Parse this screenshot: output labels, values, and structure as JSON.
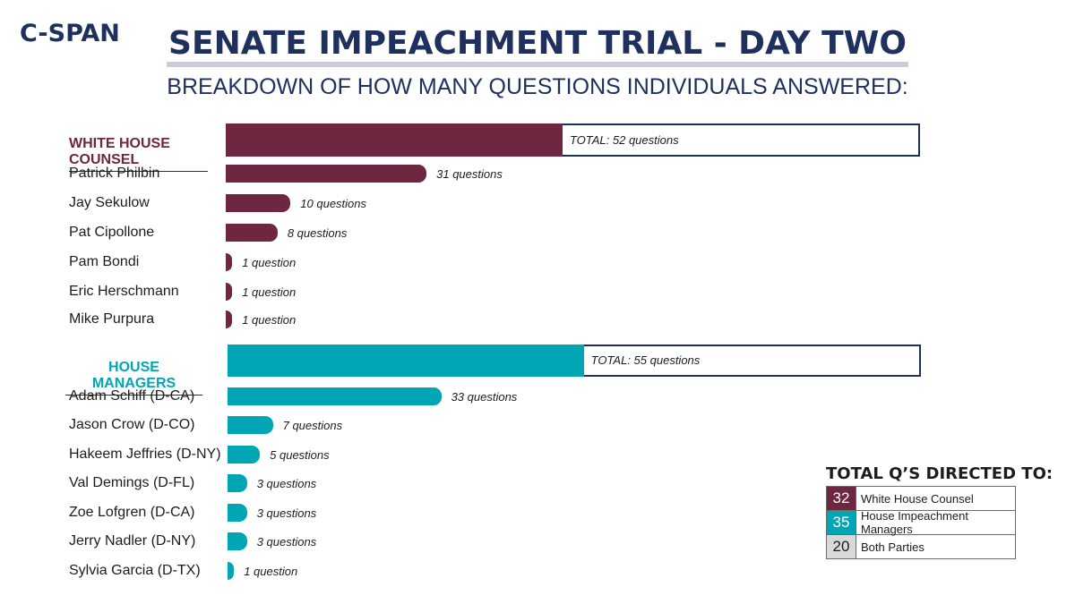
{
  "logo": "C-SPAN",
  "colors": {
    "wh": "#6e2740",
    "hm": "#00a6b4",
    "both": "#d9d9d9",
    "navy": "#1f2f5e"
  },
  "chart_data": {
    "type": "bar",
    "title": "SENATE IMPEACHMENT TRIAL - DAY TWO",
    "subtitle": "BREAKDOWN OF HOW MANY QUESTIONS INDIVIDUALS ANSWERED:",
    "groups": [
      {
        "name": "WHITE HOUSE COUNSEL",
        "total": 52,
        "total_label": "TOTAL: 52 questions",
        "members": [
          {
            "name": "Patrick Philbin",
            "value": 31,
            "label": "31 questions"
          },
          {
            "name": "Jay Sekulow",
            "value": 10,
            "label": "10 questions"
          },
          {
            "name": "Pat Cipollone",
            "value": 8,
            "label": "8 questions"
          },
          {
            "name": "Pam Bondi",
            "value": 1,
            "label": "1 question"
          },
          {
            "name": "Eric Herschmann",
            "value": 1,
            "label": "1 question"
          },
          {
            "name": "Mike Purpura",
            "value": 1,
            "label": "1 question"
          }
        ]
      },
      {
        "name": "HOUSE MANAGERS",
        "total": 55,
        "total_label": "TOTAL: 55 questions",
        "members": [
          {
            "name": "Adam Schiff (D-CA)",
            "value": 33,
            "label": "33 questions"
          },
          {
            "name": "Jason Crow (D-CO)",
            "value": 7,
            "label": "7 questions"
          },
          {
            "name": "Hakeem Jeffries (D-NY)",
            "value": 5,
            "label": "5 questions"
          },
          {
            "name": "Val Demings (D-FL)",
            "value": 3,
            "label": "3 questions"
          },
          {
            "name": "Zoe Lofgren (D-CA)",
            "value": 3,
            "label": "3 questions"
          },
          {
            "name": "Jerry Nadler (D-NY)",
            "value": 3,
            "label": "3 questions"
          },
          {
            "name": "Sylvia Garcia (D-TX)",
            "value": 1,
            "label": "1 question"
          }
        ]
      }
    ],
    "legend": {
      "title": "TOTAL Q’S DIRECTED TO:",
      "rows": [
        {
          "value": 32,
          "label": "White House Counsel"
        },
        {
          "value": 35,
          "label": "House Impeachment Managers"
        },
        {
          "value": 20,
          "label": "Both Parties"
        }
      ]
    }
  }
}
